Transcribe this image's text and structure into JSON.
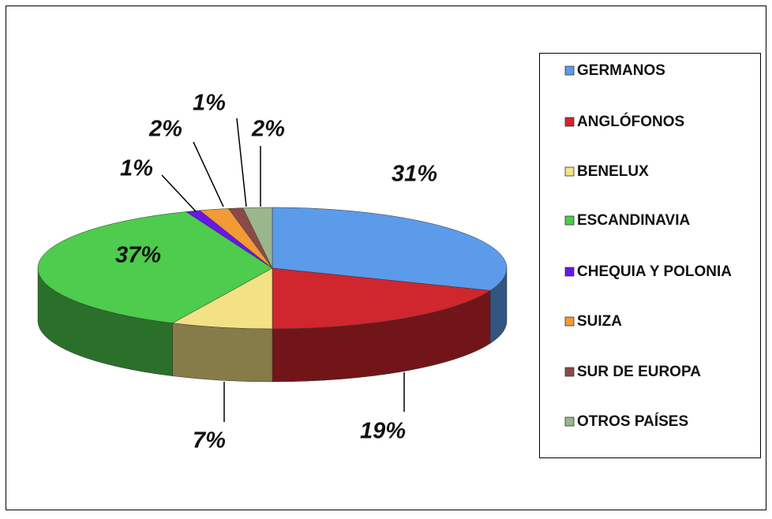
{
  "chart_data": {
    "type": "pie",
    "categories": [
      "GERMANOS",
      "ANGLÓFONOS",
      "BENELUX",
      "ESCANDINAVIA",
      "CHEQUIA Y POLONIA",
      "SUIZA",
      "SUR DE EUROPA",
      "OTROS PAÍSES"
    ],
    "values": [
      31,
      19,
      7,
      37,
      1,
      2,
      1,
      2
    ],
    "value_labels": [
      "31%",
      "19%",
      "7%",
      "37%",
      "1%",
      "2%",
      "1%",
      "2%"
    ],
    "colors": [
      "#5b9bea",
      "#d0262d",
      "#f3e185",
      "#4dcc4d",
      "#6a16e8",
      "#f29a36",
      "#8b4a4a",
      "#9bb58c"
    ],
    "legend": "right"
  }
}
